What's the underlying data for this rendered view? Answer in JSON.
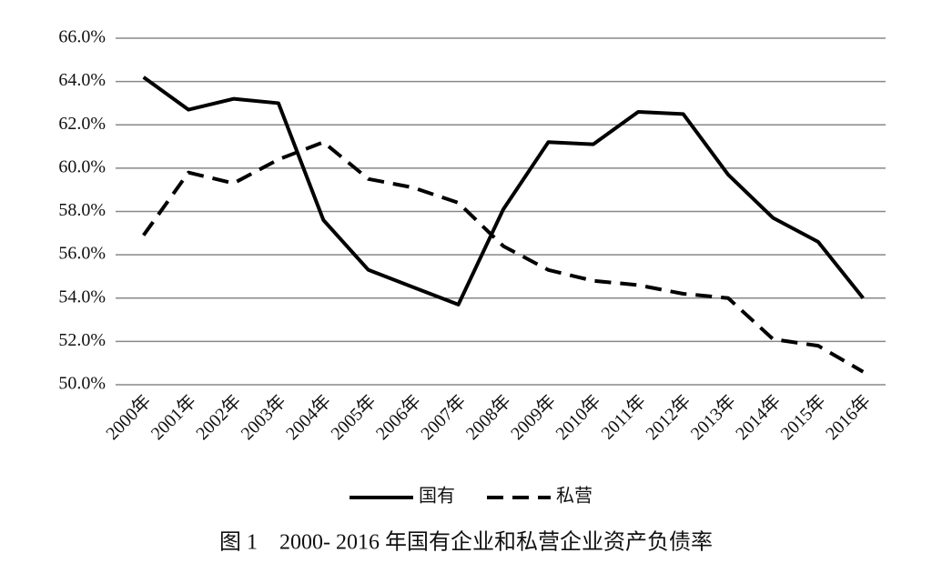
{
  "chart_data": {
    "type": "line",
    "caption": "图 1　2000- 2016 年国有企业和私营企业资产负债率",
    "categories": [
      "2000年",
      "2001年",
      "2002年",
      "2003年",
      "2004年",
      "2005年",
      "2006年",
      "2007年",
      "2008年",
      "2009年",
      "2010年",
      "2011年",
      "2012年",
      "2013年",
      "2014年",
      "2015年",
      "2016年"
    ],
    "series": [
      {
        "name": "国有",
        "color": "#000000",
        "style": "solid",
        "values": [
          64.2,
          62.7,
          63.2,
          63.0,
          57.6,
          55.3,
          54.5,
          53.7,
          58.1,
          61.2,
          61.1,
          62.6,
          62.5,
          59.7,
          57.7,
          56.6,
          54.0
        ]
      },
      {
        "name": "私营",
        "color": "#000000",
        "style": "dashed",
        "values": [
          56.9,
          59.8,
          59.3,
          60.4,
          61.2,
          59.5,
          59.1,
          58.4,
          56.4,
          55.3,
          54.8,
          54.6,
          54.2,
          54.0,
          52.1,
          51.8,
          50.6
        ]
      }
    ],
    "ylim": [
      50,
      66
    ],
    "yticks": [
      {
        "value": 50,
        "label": "50.0%"
      },
      {
        "value": 52,
        "label": "52.0%"
      },
      {
        "value": 54,
        "label": "54.0%"
      },
      {
        "value": 56,
        "label": "56.0%"
      },
      {
        "value": 58,
        "label": "58.0%"
      },
      {
        "value": 60,
        "label": "60.0%"
      },
      {
        "value": 62,
        "label": "62.0%"
      },
      {
        "value": 64,
        "label": "64.0%"
      },
      {
        "value": 66,
        "label": "66.0%"
      }
    ],
    "grid": true,
    "legend": "bottom"
  }
}
